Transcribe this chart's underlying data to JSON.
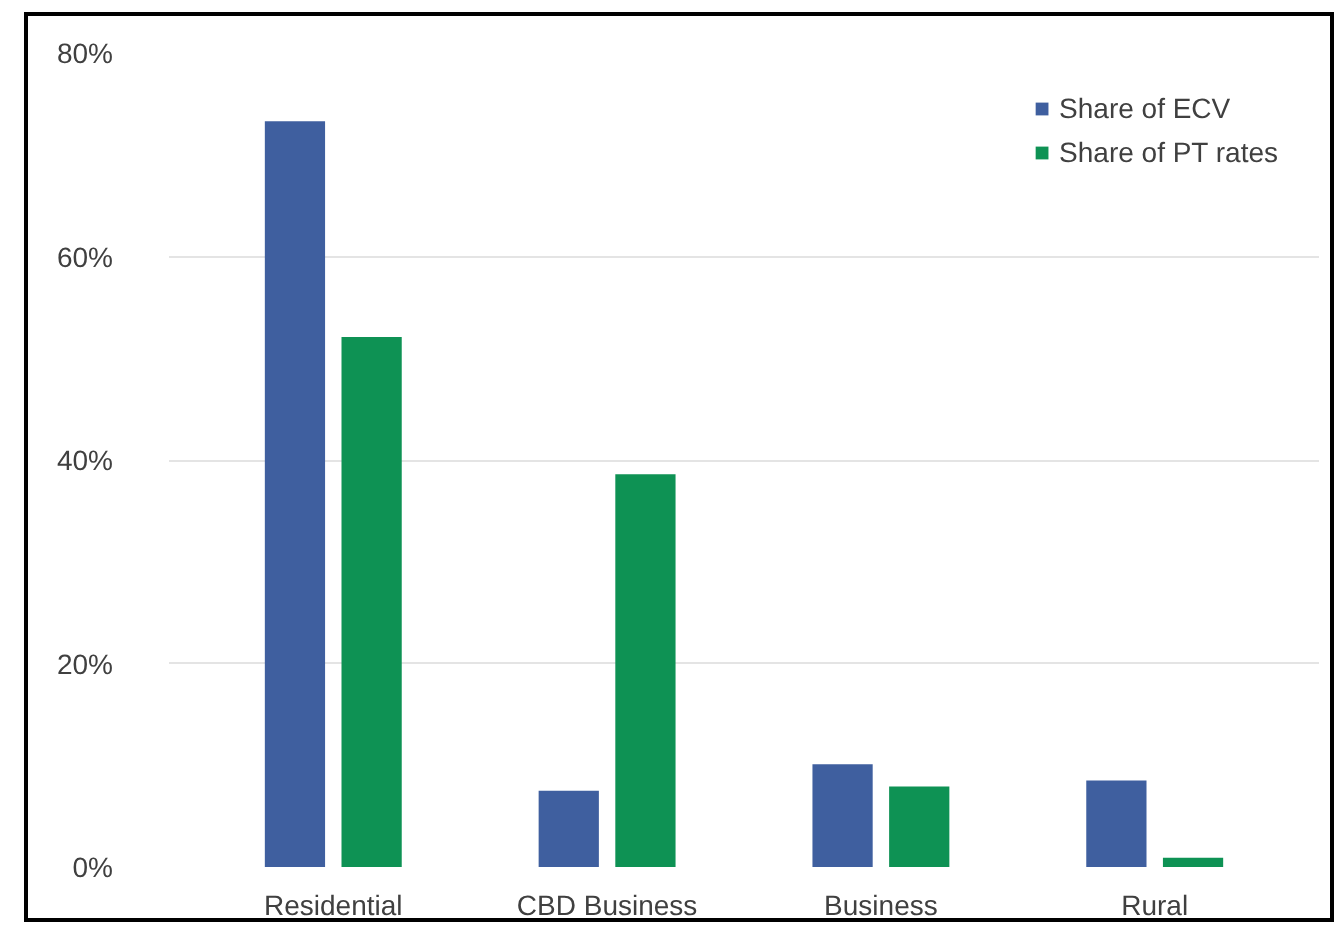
{
  "chart_data": {
    "type": "bar",
    "categories": [
      "Residential",
      "CBD Business",
      "Business",
      "Rural"
    ],
    "series": [
      {
        "name": "Share of ECV",
        "color": "#3f5f9f",
        "values": [
          73.3,
          7.5,
          10.1,
          8.5
        ]
      },
      {
        "name": "Share of PT rates",
        "color": "#0e9254",
        "values": [
          52.1,
          38.6,
          7.9,
          0.9
        ]
      }
    ],
    "ylim": [
      0,
      80
    ],
    "yticks": [
      {
        "value": 0,
        "label": "0%"
      },
      {
        "value": 20,
        "label": "20%"
      },
      {
        "value": 40,
        "label": "40%"
      },
      {
        "value": 60,
        "label": "60%"
      },
      {
        "value": 80,
        "label": "80%"
      }
    ],
    "grid": "y",
    "legend": "top right"
  }
}
